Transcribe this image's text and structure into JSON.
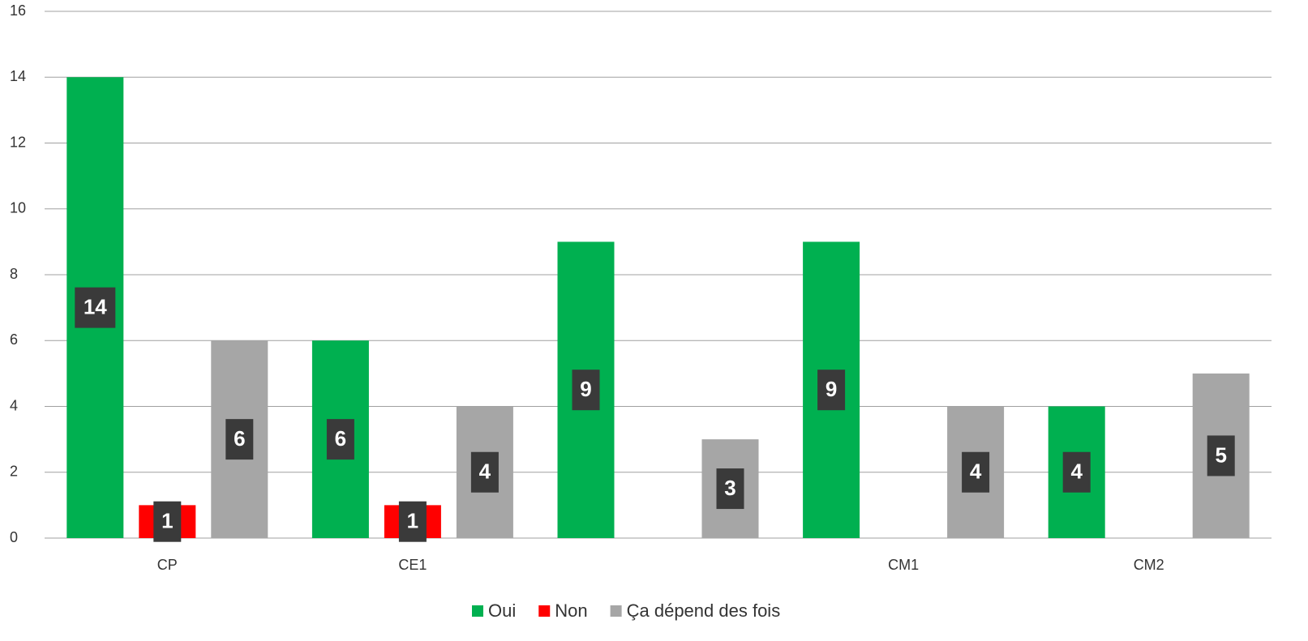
{
  "chart_data": {
    "type": "bar",
    "categories": [
      "CP",
      "CE1",
      null,
      "CM1",
      "CM2"
    ],
    "series": [
      {
        "name": "Oui",
        "color": "#00b050",
        "values": [
          14,
          6,
          9,
          9,
          4
        ]
      },
      {
        "name": "Non",
        "color": "#ff0000",
        "values": [
          1,
          1,
          null,
          null,
          null
        ]
      },
      {
        "name": "Ça dépend des fois",
        "color": "#a6a6a6",
        "values": [
          6,
          4,
          3,
          4,
          5
        ]
      }
    ],
    "ylim": [
      0,
      16
    ],
    "yticks": [
      0,
      2,
      4,
      6,
      8,
      10,
      12,
      14,
      16
    ],
    "grid": true,
    "legend": "bottom"
  }
}
